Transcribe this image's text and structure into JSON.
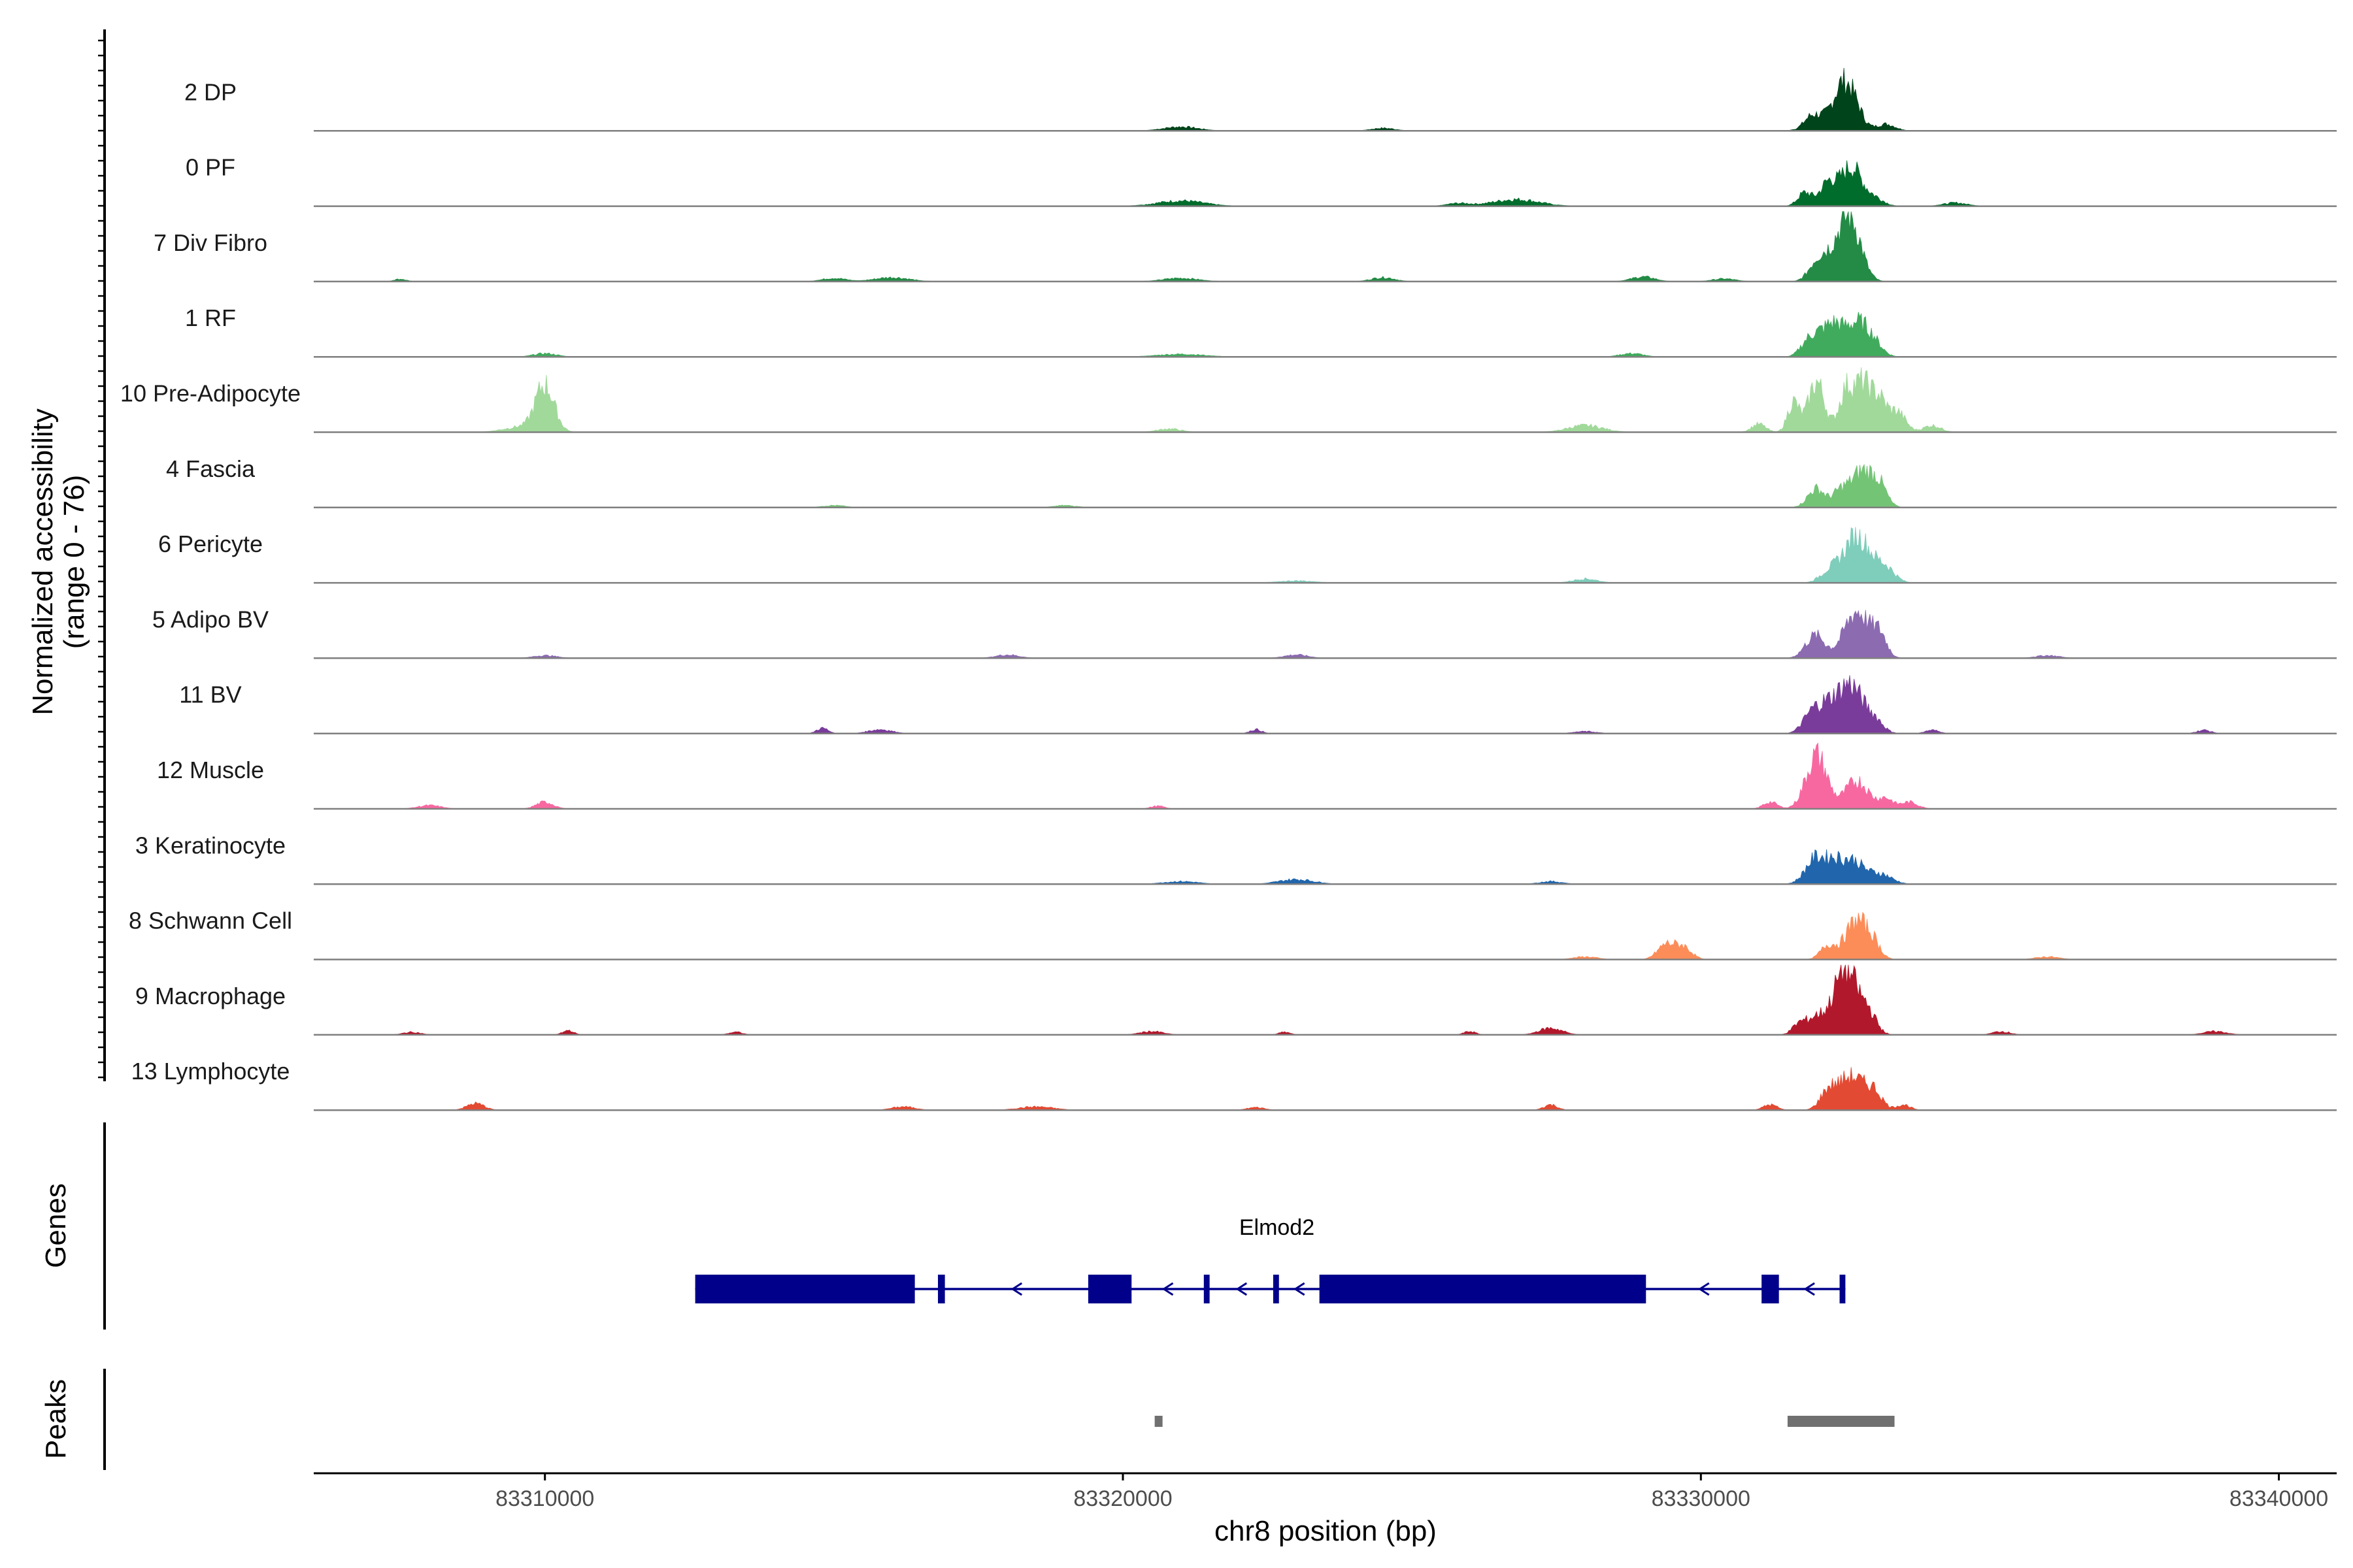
{
  "chart_data": {
    "type": "area",
    "ylabel": "Normalized accessibility",
    "ylabel_sub": "(range 0 - 76)",
    "y_range": [
      0,
      76
    ],
    "xlabel": "chr8 position (bp)",
    "x_range": [
      83306000,
      83341000
    ],
    "xticks": [
      {
        "value": 83310000,
        "label": "83310000"
      },
      {
        "value": 83320000,
        "label": "83320000"
      },
      {
        "value": 83330000,
        "label": "83330000"
      },
      {
        "value": 83340000,
        "label": "83340000"
      }
    ],
    "tracks": [
      {
        "name": "2 DP",
        "color": "#00441b",
        "peaks": [
          [
            83332200,
            0.22,
            260
          ],
          [
            83332600,
            0.5,
            160
          ],
          [
            83332400,
            0.3,
            120
          ],
          [
            83321000,
            0.06,
            300
          ],
          [
            83324500,
            0.04,
            200
          ],
          [
            83331900,
            0.12,
            120
          ],
          [
            83333200,
            0.1,
            160
          ]
        ]
      },
      {
        "name": "0 PF",
        "color": "#006d2c",
        "peaks": [
          [
            83332200,
            0.34,
            140
          ],
          [
            83332600,
            0.58,
            180
          ],
          [
            83331800,
            0.2,
            120
          ],
          [
            83333000,
            0.12,
            160
          ],
          [
            83321000,
            0.08,
            400
          ],
          [
            83326800,
            0.1,
            400
          ],
          [
            83325800,
            0.04,
            200
          ],
          [
            83334400,
            0.05,
            200
          ]
        ]
      },
      {
        "name": "7 Div Fibro",
        "color": "#238b45",
        "peaks": [
          [
            83332300,
            0.4,
            220
          ],
          [
            83332600,
            0.8,
            180
          ],
          [
            83332000,
            0.2,
            140
          ],
          [
            83315000,
            0.05,
            200
          ],
          [
            83316000,
            0.06,
            300
          ],
          [
            83321000,
            0.05,
            300
          ],
          [
            83324500,
            0.06,
            200
          ],
          [
            83329000,
            0.07,
            200
          ],
          [
            83330400,
            0.04,
            200
          ],
          [
            83307500,
            0.04,
            100
          ]
        ]
      },
      {
        "name": "1 RF",
        "color": "#41ab5d",
        "peaks": [
          [
            83332000,
            0.3,
            160
          ],
          [
            83332700,
            0.5,
            200
          ],
          [
            83332300,
            0.4,
            150
          ],
          [
            83333000,
            0.15,
            150
          ],
          [
            83331800,
            0.1,
            120
          ],
          [
            83310000,
            0.05,
            200
          ],
          [
            83321000,
            0.04,
            400
          ],
          [
            83328800,
            0.05,
            200
          ]
        ]
      },
      {
        "name": "10 Pre-Adipocyte",
        "color": "#a1d99b",
        "peaks": [
          [
            83310000,
            0.68,
            160
          ],
          [
            83309600,
            0.08,
            300
          ],
          [
            83331600,
            0.45,
            100
          ],
          [
            83332000,
            0.75,
            140
          ],
          [
            83332500,
            0.55,
            120
          ],
          [
            83332800,
            0.72,
            160
          ],
          [
            83333100,
            0.4,
            120
          ],
          [
            83333400,
            0.3,
            140
          ],
          [
            83328000,
            0.1,
            300
          ],
          [
            83320800,
            0.05,
            200
          ],
          [
            83331000,
            0.12,
            120
          ],
          [
            83334000,
            0.1,
            150
          ]
        ]
      },
      {
        "name": "4 Fascia",
        "color": "#74c476",
        "peaks": [
          [
            83332000,
            0.28,
            150
          ],
          [
            83332400,
            0.18,
            120
          ],
          [
            83332800,
            0.55,
            220
          ],
          [
            83333100,
            0.2,
            120
          ],
          [
            83315000,
            0.03,
            200
          ],
          [
            83319000,
            0.03,
            200
          ]
        ]
      },
      {
        "name": "6 Pericyte",
        "color": "#7fcdbb",
        "peaks": [
          [
            83332700,
            0.7,
            240
          ],
          [
            83332200,
            0.14,
            150
          ],
          [
            83333200,
            0.2,
            160
          ],
          [
            83328000,
            0.06,
            200
          ],
          [
            83323000,
            0.03,
            300
          ]
        ]
      },
      {
        "name": "5 Adipo BV",
        "color": "#8c6bb1",
        "peaks": [
          [
            83332000,
            0.32,
            150
          ],
          [
            83332700,
            0.7,
            220
          ],
          [
            83333100,
            0.3,
            120
          ],
          [
            83331800,
            0.06,
            120
          ],
          [
            83318000,
            0.05,
            200
          ],
          [
            83323000,
            0.05,
            200
          ],
          [
            83310000,
            0.04,
            200
          ],
          [
            83336000,
            0.04,
            200
          ]
        ]
      },
      {
        "name": "11 BV",
        "color": "#7a3c9a",
        "peaks": [
          [
            83332200,
            0.4,
            200
          ],
          [
            83332600,
            0.68,
            200
          ],
          [
            83331900,
            0.22,
            150
          ],
          [
            83333000,
            0.2,
            150
          ],
          [
            83314800,
            0.08,
            100
          ],
          [
            83315800,
            0.06,
            200
          ],
          [
            83322300,
            0.06,
            100
          ],
          [
            83334000,
            0.05,
            120
          ],
          [
            83338700,
            0.05,
            120
          ],
          [
            83328000,
            0.03,
            200
          ]
        ]
      },
      {
        "name": "12 Muscle",
        "color": "#f768a1",
        "peaks": [
          [
            83332000,
            0.8,
            180
          ],
          [
            83332700,
            0.42,
            200
          ],
          [
            83333200,
            0.15,
            120
          ],
          [
            83331200,
            0.1,
            120
          ],
          [
            83310000,
            0.1,
            150
          ],
          [
            83308000,
            0.05,
            200
          ],
          [
            83320600,
            0.04,
            120
          ],
          [
            83333600,
            0.1,
            150
          ]
        ]
      },
      {
        "name": "3 Keratinocyte",
        "color": "#2166ac",
        "peaks": [
          [
            83332000,
            0.4,
            180
          ],
          [
            83332600,
            0.36,
            200
          ],
          [
            83332300,
            0.2,
            120
          ],
          [
            83333100,
            0.15,
            200
          ],
          [
            83321000,
            0.04,
            300
          ],
          [
            83323000,
            0.07,
            300
          ],
          [
            83327400,
            0.04,
            200
          ]
        ]
      },
      {
        "name": "8 Schwann Cell",
        "color": "#fc8d59",
        "peaks": [
          [
            83329400,
            0.22,
            150
          ],
          [
            83329700,
            0.18,
            140
          ],
          [
            83332700,
            0.58,
            200
          ],
          [
            83332200,
            0.2,
            130
          ],
          [
            83333000,
            0.15,
            120
          ],
          [
            83328000,
            0.04,
            200
          ],
          [
            83336000,
            0.04,
            200
          ]
        ]
      },
      {
        "name": "9 Macrophage",
        "color": "#b2182b",
        "peaks": [
          [
            83332500,
            1.0,
            200
          ],
          [
            83332000,
            0.25,
            160
          ],
          [
            83332900,
            0.3,
            140
          ],
          [
            83331700,
            0.15,
            120
          ],
          [
            83310400,
            0.06,
            100
          ],
          [
            83313300,
            0.04,
            120
          ],
          [
            83320500,
            0.05,
            200
          ],
          [
            83322800,
            0.04,
            100
          ],
          [
            83326000,
            0.05,
            100
          ],
          [
            83327400,
            0.1,
            200
          ],
          [
            83335200,
            0.05,
            150
          ],
          [
            83338900,
            0.05,
            200
          ],
          [
            83307700,
            0.04,
            150
          ]
        ]
      },
      {
        "name": "13 Lymphocyte",
        "color": "#e34a33",
        "peaks": [
          [
            83332600,
            0.5,
            220
          ],
          [
            83332200,
            0.25,
            140
          ],
          [
            83333000,
            0.25,
            140
          ],
          [
            83331200,
            0.08,
            120
          ],
          [
            83308800,
            0.1,
            150
          ],
          [
            83316200,
            0.05,
            200
          ],
          [
            83318500,
            0.05,
            300
          ],
          [
            83322300,
            0.04,
            150
          ],
          [
            83327400,
            0.08,
            120
          ],
          [
            83333500,
            0.08,
            120
          ]
        ]
      }
    ],
    "genes": [
      {
        "name": "Elmod2",
        "strand": "-",
        "color": "#00008b",
        "start": 83312600,
        "end": 83332500,
        "exons": [
          [
            83312600,
            83316400
          ],
          [
            83316800,
            83316920
          ],
          [
            83319400,
            83320150
          ],
          [
            83321400,
            83321500
          ],
          [
            83322600,
            83322700
          ],
          [
            83323400,
            83329050
          ],
          [
            83331050,
            83331350
          ],
          [
            83332400,
            83332500
          ]
        ]
      }
    ],
    "peaks_track": [
      [
        83320550,
        83320650
      ],
      [
        83331500,
        83333350
      ]
    ],
    "peaks_color": "#707070",
    "panel_labels": {
      "genes": "Genes",
      "peaks": "Peaks"
    }
  }
}
